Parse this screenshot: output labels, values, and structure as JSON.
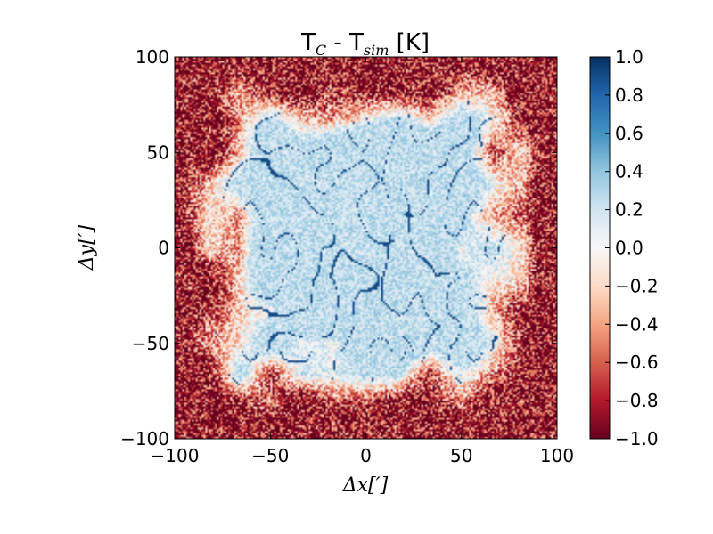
{
  "chart_data": {
    "type": "heatmap",
    "title": "T",
    "title_parts": {
      "a": "T",
      "a_sub": "C",
      "mid": " - T",
      "b_sub": "sim",
      "unit": " [K]"
    },
    "xlabel": "Δx[′]",
    "ylabel": "Δy[′]",
    "xlim": [
      -100,
      100
    ],
    "ylim": [
      -100,
      100
    ],
    "x_ticks": [
      -100,
      -50,
      0,
      50,
      100
    ],
    "y_ticks": [
      -100,
      -50,
      0,
      50,
      100
    ],
    "x_tick_labels": [
      "−100",
      "−50",
      "0",
      "50",
      "100"
    ],
    "y_tick_labels": [
      "−100",
      "−50",
      "0",
      "50",
      "100"
    ],
    "colorbar": {
      "colormap": "RdBu",
      "range": [
        -1.0,
        1.0
      ],
      "ticks": [
        1.0,
        0.8,
        0.6,
        0.4,
        0.2,
        0.0,
        -0.2,
        -0.4,
        -0.6,
        -0.8,
        -1.0
      ],
      "tick_labels": [
        "1.0",
        "0.8",
        "0.6",
        "0.4",
        "0.2",
        "0.0",
        "−0.2",
        "−0.4",
        "−0.6",
        "−0.8",
        "−1.0"
      ]
    },
    "description_values": {
      "center_region_value": 0.25,
      "border_region_value": -0.9,
      "filament_value": 0.9
    },
    "grid": false
  },
  "colors": {
    "cmap_low": "#67001f",
    "cmap_mid": "#f7f7f7",
    "cmap_high": "#053061"
  }
}
